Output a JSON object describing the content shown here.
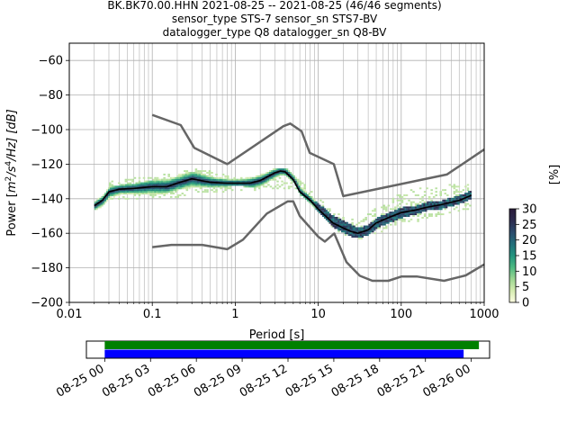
{
  "chart_data": {
    "type": "heatmap",
    "title_lines": [
      "BK.BK70.00.HHN   2021-08-25 -- 2021-08-25  (46/46 segments)",
      "sensor_type STS-7 sensor_sn STS7-BV",
      "datalogger_type Q8 datalogger_sn Q8-BV"
    ],
    "xlabel": "Period [s]",
    "ylabel": "Power [$m^2/s^4/Hz$] [dB]",
    "ylabel_parts": {
      "prefix": "Power [",
      "m": "m",
      "two": "2",
      "s": "/s",
      "four": "4",
      "hz": "/Hz] [dB]"
    },
    "x_scale": "log",
    "xlim": [
      0.01,
      1000
    ],
    "ylim": [
      -200,
      -50
    ],
    "x_ticks": [
      {
        "value": 0.01,
        "label": "0.01"
      },
      {
        "value": 0.1,
        "label": "0.1"
      },
      {
        "value": 1,
        "label": "1"
      },
      {
        "value": 10,
        "label": "10"
      },
      {
        "value": 100,
        "label": "100"
      },
      {
        "value": 1000,
        "label": "1000"
      }
    ],
    "y_ticks": [
      {
        "value": -60,
        "label": "−60"
      },
      {
        "value": -80,
        "label": "−80"
      },
      {
        "value": -100,
        "label": "−100"
      },
      {
        "value": -120,
        "label": "−120"
      },
      {
        "value": -140,
        "label": "−140"
      },
      {
        "value": -160,
        "label": "−160"
      },
      {
        "value": -180,
        "label": "−180"
      },
      {
        "value": -200,
        "label": "−200"
      }
    ],
    "grid": true,
    "colorbar": {
      "label": "[%]",
      "min": 0,
      "max": 30,
      "ticks": [
        {
          "value": 0,
          "label": "0"
        },
        {
          "value": 5,
          "label": "5"
        },
        {
          "value": 10,
          "label": "10"
        },
        {
          "value": 15,
          "label": "15"
        },
        {
          "value": 20,
          "label": "20"
        },
        {
          "value": 25,
          "label": "25"
        },
        {
          "value": 30,
          "label": "30"
        }
      ],
      "colors": [
        "#fdfde2",
        "#d5ecb0",
        "#9cd693",
        "#4cb981",
        "#22947e",
        "#226e7a",
        "#2a4a6c",
        "#2c2b4e",
        "#2a1a3a"
      ]
    },
    "noise_models": {
      "color": "#666666",
      "high": {
        "x": [
          0.1,
          0.22,
          0.32,
          0.8,
          3.8,
          4.6,
          6.3,
          7.9,
          15.4,
          20,
          354.8,
          1000
        ],
        "y": [
          -91.5,
          -97.4,
          -110.5,
          -120,
          -98,
          -96.5,
          -101,
          -113.5,
          -120,
          -138.5,
          -126,
          -111.5
        ]
      },
      "low": {
        "x": [
          0.1,
          0.17,
          0.4,
          0.8,
          1.24,
          2.4,
          4.3,
          5,
          6,
          10,
          12,
          15.6,
          21.9,
          31.6,
          45,
          70,
          101,
          154,
          328,
          600,
          1000
        ],
        "y": [
          -168,
          -166.7,
          -166.7,
          -169.2,
          -163.7,
          -148.6,
          -141.5,
          -141.5,
          -150,
          -162,
          -164.8,
          -160.1,
          -176.7,
          -184.6,
          -187.5,
          -187.5,
          -185,
          -185,
          -187.5,
          -184.4,
          -178
        ]
      }
    },
    "mode_curve": {
      "color": "#000000",
      "x": [
        0.02,
        0.025,
        0.03,
        0.04,
        0.06,
        0.1,
        0.15,
        0.2,
        0.3,
        0.5,
        0.8,
        1.2,
        1.5,
        2,
        3,
        3.5,
        4,
        5,
        6,
        8,
        10,
        15,
        20,
        25,
        30,
        40,
        50,
        70,
        100,
        150,
        200,
        300,
        500,
        700
      ],
      "y": [
        -144,
        -141,
        -136,
        -134.5,
        -134,
        -133,
        -133,
        -131,
        -128.5,
        -130.5,
        -131,
        -131,
        -131,
        -129.5,
        -125,
        -124,
        -124.5,
        -129,
        -136,
        -141,
        -146,
        -154,
        -157,
        -159,
        -160,
        -158,
        -154,
        -151,
        -148,
        -146.5,
        -145,
        -143.5,
        -141,
        -138
      ]
    },
    "dense_band": {
      "description_of_data": "percent occurrence per period bin",
      "x": [
        0.02,
        0.025,
        0.03,
        0.04,
        0.06,
        0.1,
        0.15,
        0.2,
        0.3,
        0.5,
        0.8,
        1.2,
        1.5,
        2,
        3,
        3.5,
        4,
        5,
        6,
        8,
        10,
        15,
        20,
        25,
        30,
        40,
        50,
        70,
        100,
        150,
        200,
        300,
        500,
        700
      ],
      "lower": [
        -146,
        -143,
        -139,
        -137,
        -137,
        -137,
        -136,
        -134,
        -133,
        -133,
        -132,
        -132,
        -133,
        -132,
        -127,
        -126,
        -126,
        -130,
        -137,
        -142,
        -147,
        -156,
        -159,
        -161,
        -162,
        -160,
        -156,
        -153,
        -150,
        -148,
        -146,
        -145,
        -142,
        -139
      ],
      "upper": [
        -142,
        -139,
        -134,
        -133,
        -132,
        -130,
        -129,
        -127,
        -125,
        -128,
        -129,
        -129,
        -128,
        -127,
        -123,
        -123,
        -123,
        -127,
        -134,
        -139,
        -144,
        -151,
        -154,
        -156,
        -158,
        -156,
        -152,
        -149,
        -146,
        -145,
        -143,
        -142,
        -139,
        -136
      ]
    },
    "sparse_band": {
      "x": [
        0.03,
        0.05,
        0.1,
        0.2,
        0.3,
        0.5,
        1,
        2,
        5,
        10,
        15,
        20,
        30,
        50,
        100,
        200,
        500,
        700
      ],
      "lower": [
        -140,
        -141,
        -140,
        -139,
        -137,
        -136,
        -136,
        -135,
        -134,
        -146,
        -158,
        -162,
        -164,
        -160,
        -155,
        -152,
        -148,
        -145
      ],
      "upper": [
        -130,
        -128,
        -127,
        -124,
        -122,
        -124,
        -128,
        -128,
        -126,
        -140,
        -148,
        -150,
        -152,
        -145,
        -135,
        -132,
        -132,
        -130
      ]
    },
    "timeline": {
      "tick_labels": [
        "08-25 00",
        "08-25 03",
        "08-25 06",
        "08-25 09",
        "08-25 12",
        "08-25 15",
        "08-25 18",
        "08-25 21",
        "08-26 00"
      ],
      "tick_hours": [
        0,
        3,
        6,
        9,
        12,
        15,
        18,
        21,
        24
      ],
      "range_hours": [
        -1.2,
        25.2
      ],
      "bars": [
        {
          "name": "segments_available",
          "color": "#008000",
          "start_hour": 0,
          "end_hour": 24.5
        },
        {
          "name": "segments_used",
          "color": "#0000ff",
          "start_hour": 0,
          "end_hour": 23.5
        }
      ]
    }
  }
}
